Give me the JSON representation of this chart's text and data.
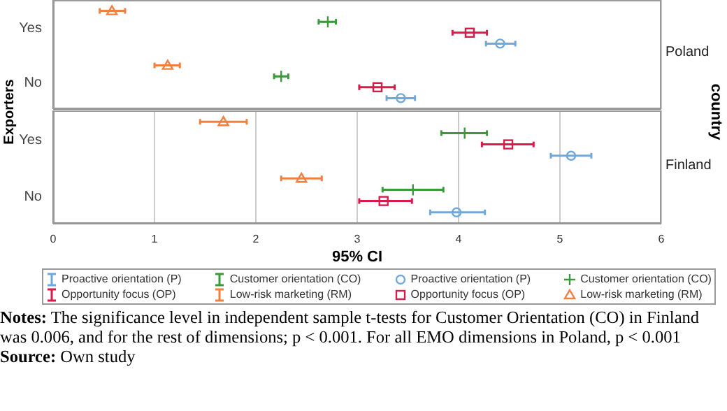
{
  "chart_data": [
    {
      "type": "scatter",
      "orientation": "horizontal",
      "title": "Poland",
      "ylabel": "Exporters",
      "y2label": "country",
      "categories": [
        "Yes",
        "No"
      ],
      "xlim": [
        0,
        6
      ],
      "xticks": [
        0,
        1,
        2,
        3,
        4,
        5,
        6
      ],
      "grid": "x",
      "tick_labels": "y",
      "legend": "bottom",
      "series": [
        {
          "name": "Proactive orientation (P)",
          "color": "#6fa8dc",
          "marker": "circle",
          "values": [
            4.41,
            3.43
          ],
          "errors": [
            [
              4.27,
              4.56
            ],
            [
              3.29,
              3.57
            ]
          ]
        },
        {
          "name": "Customer orientation (CO)",
          "color": "#3a9a3a",
          "marker": "cross",
          "values": [
            2.71,
            2.25
          ],
          "errors": [
            [
              2.62,
              2.79
            ],
            [
              2.18,
              2.32
            ]
          ]
        },
        {
          "name": "Opportunity focus (OP)",
          "color": "#d81b4a",
          "marker": "square",
          "values": [
            4.11,
            3.2
          ],
          "errors": [
            [
              3.94,
              4.28
            ],
            [
              3.02,
              3.37
            ]
          ]
        },
        {
          "name": "Low-risk marketing (RM)",
          "color": "#f08040",
          "marker": "triangle",
          "values": [
            0.58,
            1.13
          ],
          "errors": [
            [
              0.46,
              0.71
            ],
            [
              1.0,
              1.25
            ]
          ]
        }
      ]
    },
    {
      "type": "scatter",
      "orientation": "horizontal",
      "title": "Finland",
      "xlabel": "95% CI",
      "categories": [
        "Yes",
        "No"
      ],
      "xlim": [
        0,
        6
      ],
      "xticks": [
        0,
        1,
        2,
        3,
        4,
        5,
        6
      ],
      "grid": "x",
      "legend": "bottom",
      "series": [
        {
          "name": "Proactive orientation (P)",
          "color": "#6fa8dc",
          "marker": "circle",
          "values": [
            5.11,
            3.98
          ],
          "errors": [
            [
              4.91,
              5.31
            ],
            [
              3.72,
              4.26
            ]
          ]
        },
        {
          "name": "Customer orientation (CO)",
          "color": "#3a9a3a",
          "marker": "cross",
          "values": [
            4.06,
            3.55
          ],
          "errors": [
            [
              3.83,
              4.28
            ],
            [
              3.25,
              3.85
            ]
          ]
        },
        {
          "name": "Opportunity focus (OP)",
          "color": "#d81b4a",
          "marker": "square",
          "values": [
            4.49,
            3.26
          ],
          "errors": [
            [
              4.23,
              4.74
            ],
            [
              3.02,
              3.54
            ]
          ]
        },
        {
          "name": "Low-risk marketing (RM)",
          "color": "#f08040",
          "marker": "triangle",
          "values": [
            1.68,
            2.45
          ],
          "errors": [
            [
              1.45,
              1.91
            ],
            [
              2.25,
              2.65
            ]
          ]
        }
      ],
      "annotations": [
        "Notes: The significance level in independent sample t-tests for Customer Orientation (CO) in Finland was 0.006, and for the rest of dimensions; p < 0.001. For all EMO dimensions in Poland, p < 0.001",
        "Source: Own study"
      ]
    }
  ]
}
